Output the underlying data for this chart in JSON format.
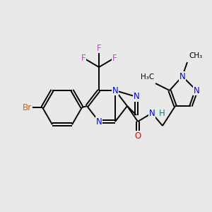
{
  "bg_color": "#e9e9e9",
  "bond_color": "#000000",
  "bond_width": 1.4,
  "dbo": 0.06,
  "atom_colors": {
    "N": "#0000ee",
    "O": "#ee0000",
    "Br": "#cc6600",
    "F": "#cc44cc",
    "H": "#008888",
    "C": "#000000"
  },
  "fs": 8.5,
  "fs_small": 7.5
}
